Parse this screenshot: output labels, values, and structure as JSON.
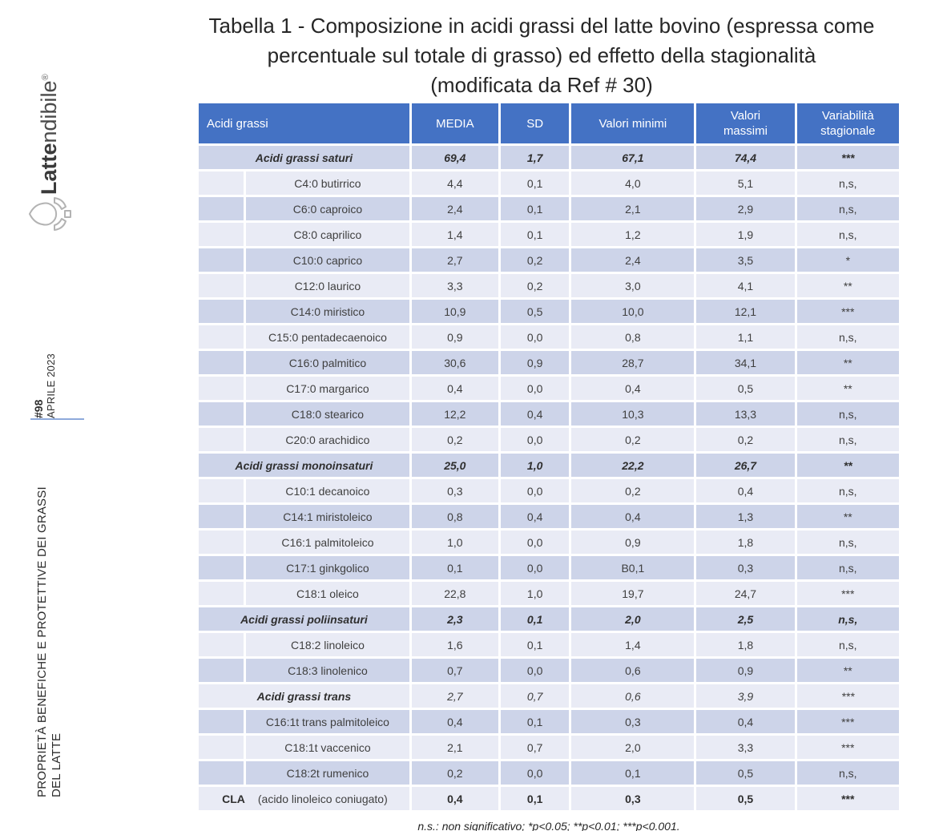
{
  "page": {
    "title_lines": [
      "Tabella 1 -  Composizione in acidi grassi del latte bovino (espressa come",
      "percentuale sul totale di grasso) ed effetto della stagionalità",
      "(modificata da Ref # 30)"
    ]
  },
  "sidebar": {
    "logo": {
      "brand_bold": "Latte",
      "brand_light": "ndibile",
      "registered": "®",
      "icon": "milk-drop-in-hands-icon"
    },
    "issue": {
      "number": "#98",
      "date": "APRILE 2023"
    },
    "section_title_lines": [
      "PROPRIETÀ BENEFICHE E PROTETTIVE DEI GRASSI",
      "DEL LATTE"
    ]
  },
  "colors": {
    "header_bg": "#4472C4",
    "row_dark": "#CDD4E9",
    "row_light": "#E9EBF5",
    "accent_line": "#8EAADB"
  },
  "table": {
    "columns": [
      "Acidi grassi",
      "MEDIA",
      "SD",
      "Valori  minimi",
      "Valori\nmassimi",
      "Variabilità\nstagionale"
    ],
    "rows": [
      {
        "type": "group",
        "label": "Acidi grassi saturi",
        "values": [
          "69,4",
          "1,7",
          "67,1",
          "74,4",
          "***"
        ]
      },
      {
        "type": "item",
        "label": "C4:0 butirrico",
        "values": [
          "4,4",
          "0,1",
          "4,0",
          "5,1",
          "n,s,"
        ]
      },
      {
        "type": "item",
        "label": "C6:0 caproico",
        "values": [
          "2,4",
          "0,1",
          "2,1",
          "2,9",
          "n,s,"
        ]
      },
      {
        "type": "item",
        "label": "C8:0 caprilico",
        "values": [
          "1,4",
          "0,1",
          "1,2",
          "1,9",
          "n,s,"
        ]
      },
      {
        "type": "item",
        "label": "C10:0 caprico",
        "values": [
          "2,7",
          "0,2",
          "2,4",
          "3,5",
          "*"
        ]
      },
      {
        "type": "item",
        "label": "C12:0 laurico",
        "values": [
          "3,3",
          "0,2",
          "3,0",
          "4,1",
          "**"
        ]
      },
      {
        "type": "item",
        "label": "C14:0 miristico",
        "values": [
          "10,9",
          "0,5",
          "10,0",
          "12,1",
          "***"
        ]
      },
      {
        "type": "item",
        "label": "C15:0 pentadecaenoico",
        "values": [
          "0,9",
          "0,0",
          "0,8",
          "1,1",
          "n,s,"
        ]
      },
      {
        "type": "item",
        "label": "C16:0 palmitico",
        "values": [
          "30,6",
          "0,9",
          "28,7",
          "34,1",
          "**"
        ]
      },
      {
        "type": "item",
        "label": "C17:0 margarico",
        "values": [
          "0,4",
          "0,0",
          "0,4",
          "0,5",
          "**"
        ]
      },
      {
        "type": "item",
        "label": "C18:0 stearico",
        "values": [
          "12,2",
          "0,4",
          "10,3",
          "13,3",
          "n,s,"
        ]
      },
      {
        "type": "item",
        "label": "C20:0 arachidico",
        "values": [
          "0,2",
          "0,0",
          "0,2",
          "0,2",
          "n,s,"
        ]
      },
      {
        "type": "group",
        "label": "Acidi grassi monoinsaturi",
        "values": [
          "25,0",
          "1,0",
          "22,2",
          "26,7",
          "**"
        ]
      },
      {
        "type": "item",
        "label": "C10:1 decanoico",
        "values": [
          "0,3",
          "0,0",
          "0,2",
          "0,4",
          "n,s,"
        ]
      },
      {
        "type": "item",
        "label": "C14:1 miristoleico",
        "values": [
          "0,8",
          "0,4",
          "0,4",
          "1,3",
          "**"
        ]
      },
      {
        "type": "item",
        "label": "C16:1 palmitoleico",
        "values": [
          "1,0",
          "0,0",
          "0,9",
          "1,8",
          "n,s,"
        ]
      },
      {
        "type": "item",
        "label": "C17:1 ginkgolico",
        "values": [
          "0,1",
          "0,0",
          "B0,1",
          "0,3",
          "n,s,"
        ]
      },
      {
        "type": "item",
        "label": "C18:1 oleico",
        "values": [
          "22,8",
          "1,0",
          "19,7",
          "24,7",
          "***"
        ]
      },
      {
        "type": "group",
        "label": "Acidi grassi poliinsaturi",
        "values": [
          "2,3",
          "0,1",
          "2,0",
          "2,5",
          "n,s,"
        ]
      },
      {
        "type": "item",
        "label": "C18:2 linoleico",
        "values": [
          "1,6",
          "0,1",
          "1,4",
          "1,8",
          "n,s,"
        ]
      },
      {
        "type": "item",
        "label": "C18:3 linolenico",
        "values": [
          "0,7",
          "0,0",
          "0,6",
          "0,9",
          "**"
        ]
      },
      {
        "type": "group_light",
        "label": "Acidi grassi trans",
        "values": [
          "2,7",
          "0,7",
          "0,6",
          "3,9",
          "***"
        ]
      },
      {
        "type": "item",
        "label": "C16:1t trans palmitoleico",
        "values": [
          "0,4",
          "0,1",
          "0,3",
          "0,4",
          "***"
        ]
      },
      {
        "type": "item",
        "label": "C18:1t vaccenico",
        "values": [
          "2,1",
          "0,7",
          "2,0",
          "3,3",
          "***"
        ]
      },
      {
        "type": "item",
        "label": "C18:2t rumenico",
        "values": [
          "0,2",
          "0,0",
          "0,1",
          "0,5",
          "n,s,"
        ]
      },
      {
        "type": "cla",
        "prefix": "CLA",
        "label": "(acido linoleico coniugato)",
        "values": [
          "0,4",
          "0,1",
          "0,3",
          "0,5",
          "***"
        ]
      }
    ],
    "footnote": "n.s.: non significativo; *p<0.05; **p<0.01; ***p<0.001."
  }
}
